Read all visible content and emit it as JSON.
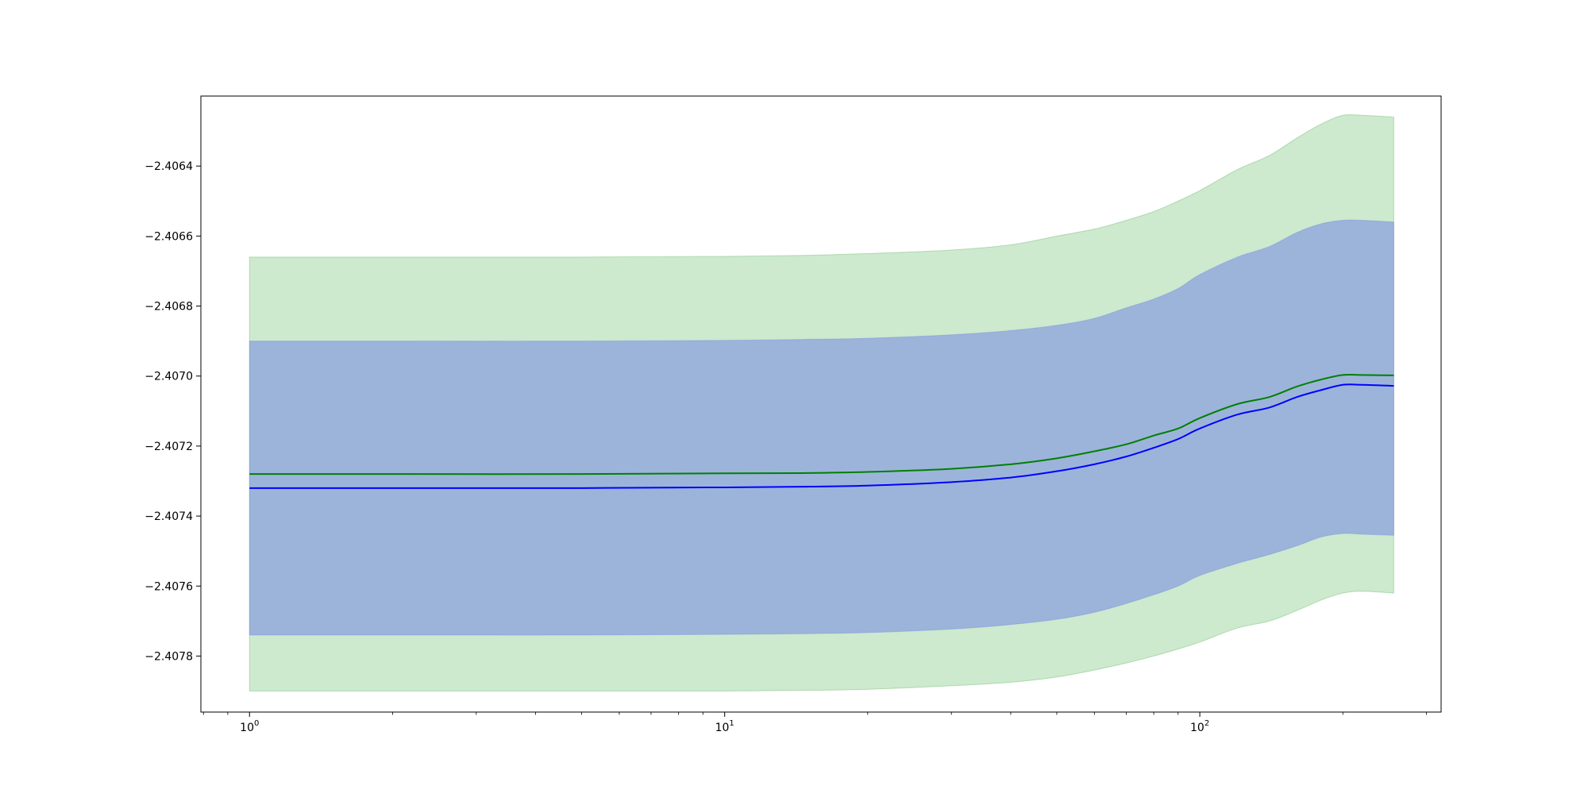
{
  "chart_data": {
    "type": "line",
    "title": "",
    "xlabel": "",
    "ylabel": "",
    "x_scale": "log",
    "xlim": [
      0.79,
      322
    ],
    "ylim": [
      -2.40796,
      -2.4062
    ],
    "grid": false,
    "legend": "none",
    "x_ticks": [
      {
        "value": 1,
        "base": "10",
        "exp": "0"
      },
      {
        "value": 10,
        "base": "10",
        "exp": "1"
      },
      {
        "value": 100,
        "base": "10",
        "exp": "2"
      }
    ],
    "y_ticks": [
      {
        "value": -2.4064,
        "label": "−2.4064"
      },
      {
        "value": -2.4066,
        "label": "−2.4066"
      },
      {
        "value": -2.4068,
        "label": "−2.4068"
      },
      {
        "value": -2.407,
        "label": "−2.4070"
      },
      {
        "value": -2.4072,
        "label": "−2.4072"
      },
      {
        "value": -2.4074,
        "label": "−2.4074"
      },
      {
        "value": -2.4076,
        "label": "−2.4076"
      },
      {
        "value": -2.4078,
        "label": "−2.4078"
      }
    ],
    "x": [
      1,
      2,
      5,
      10,
      15,
      20,
      30,
      40,
      50,
      60,
      70,
      80,
      90,
      100,
      120,
      140,
      160,
      180,
      200,
      220,
      256
    ],
    "series": [
      {
        "color": "#008000",
        "band_color": "#4caf50",
        "values": [
          -2.40728,
          -2.40728,
          -2.40728,
          -2.407278,
          -2.407277,
          -2.407274,
          -2.407265,
          -2.407252,
          -2.407235,
          -2.407215,
          -2.407195,
          -2.40717,
          -2.40715,
          -2.40712,
          -2.40708,
          -2.40706,
          -2.40703,
          -2.40701,
          -2.406997,
          -2.406997,
          -2.406998
        ],
        "band_lower": [
          -2.4079,
          -2.4079,
          -2.4079,
          -2.4079,
          -2.407898,
          -2.407895,
          -2.407885,
          -2.407875,
          -2.40786,
          -2.40784,
          -2.40782,
          -2.4078,
          -2.40778,
          -2.40776,
          -2.40772,
          -2.4077,
          -2.40767,
          -2.40764,
          -2.40762,
          -2.407615,
          -2.40762
        ],
        "band_upper": [
          -2.40666,
          -2.40666,
          -2.40666,
          -2.406658,
          -2.406655,
          -2.40665,
          -2.40664,
          -2.406625,
          -2.4066,
          -2.40658,
          -2.406555,
          -2.40653,
          -2.4065,
          -2.40647,
          -2.40641,
          -2.40637,
          -2.40632,
          -2.40628,
          -2.406255,
          -2.406255,
          -2.40626
        ]
      },
      {
        "color": "#0000ff",
        "band_color": "#6b7fe6",
        "values": [
          -2.40732,
          -2.40732,
          -2.40732,
          -2.407318,
          -2.407316,
          -2.407313,
          -2.407303,
          -2.40729,
          -2.407272,
          -2.407252,
          -2.40723,
          -2.407205,
          -2.40718,
          -2.40715,
          -2.40711,
          -2.40709,
          -2.40706,
          -2.40704,
          -2.407025,
          -2.407025,
          -2.407028
        ],
        "band_lower": [
          -2.40774,
          -2.40774,
          -2.40774,
          -2.407738,
          -2.407736,
          -2.407733,
          -2.407723,
          -2.40771,
          -2.407695,
          -2.407675,
          -2.40765,
          -2.407625,
          -2.4076,
          -2.40757,
          -2.407535,
          -2.40751,
          -2.407485,
          -2.40746,
          -2.40745,
          -2.407452,
          -2.407455
        ],
        "band_upper": [
          -2.4069,
          -2.4069,
          -2.4069,
          -2.406898,
          -2.406895,
          -2.406892,
          -2.406882,
          -2.40687,
          -2.406855,
          -2.406835,
          -2.406805,
          -2.40678,
          -2.40675,
          -2.40671,
          -2.40666,
          -2.40663,
          -2.40659,
          -2.406565,
          -2.406555,
          -2.406555,
          -2.40656
        ]
      }
    ]
  }
}
